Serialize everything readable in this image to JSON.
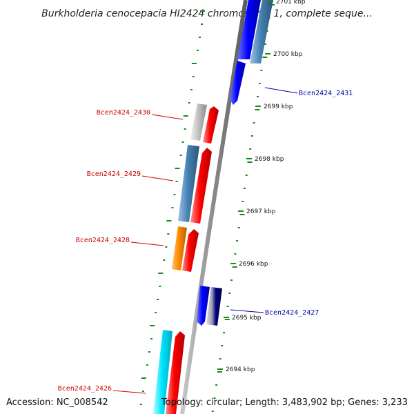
{
  "title": "Burkholderia cenocepacia HI2424 chromosome 1, complete seque...",
  "footer": {
    "accession": "Accession: NC_008542",
    "info": "Topology: circular; Length: 3,483,902 bp; Genes: 3,233"
  },
  "scale": {
    "ticks": [
      {
        "label": "2701 kbp",
        "kbp": 2701
      },
      {
        "label": "2700 kbp",
        "kbp": 2700
      },
      {
        "label": "2699 kbp",
        "kbp": 2699
      },
      {
        "label": "2698 kbp",
        "kbp": 2698
      },
      {
        "label": "2697 kbp",
        "kbp": 2697
      },
      {
        "label": "2696 kbp",
        "kbp": 2696
      },
      {
        "label": "2695 kbp",
        "kbp": 2695
      },
      {
        "label": "2694 kbp",
        "kbp": 2694
      }
    ]
  },
  "gene_labels": [
    {
      "id": "Bcen2424_2431",
      "text": "Bcen2424_2431",
      "color": "#0000aa",
      "side": "right"
    },
    {
      "id": "Bcen2424_2430",
      "text": "Bcen2424_2430",
      "color": "#cc0000",
      "side": "left"
    },
    {
      "id": "Bcen2424_2429",
      "text": "Bcen2424_2429",
      "color": "#cc0000",
      "side": "left"
    },
    {
      "id": "Bcen2424_2428",
      "text": "Bcen2424_2428",
      "color": "#cc0000",
      "side": "left"
    },
    {
      "id": "Bcen2424_2427",
      "text": "Bcen2424_2427",
      "color": "#0000aa",
      "side": "right"
    },
    {
      "id": "Bcen2424_2426",
      "text": "Bcen2424_2426",
      "color": "#cc0000",
      "side": "left"
    }
  ],
  "colors": {
    "forward_cds": "#ff0000",
    "reverse_cds": "#0000ff",
    "steelblue_feature": "#4682b4",
    "grey_feature": "#bbbbbb",
    "orange_feature": "#ff8c00",
    "cyan_feature": "#00e5ff",
    "navy_feature": "#000080",
    "backbone": "#888888",
    "dots": "#1a8a1a"
  }
}
